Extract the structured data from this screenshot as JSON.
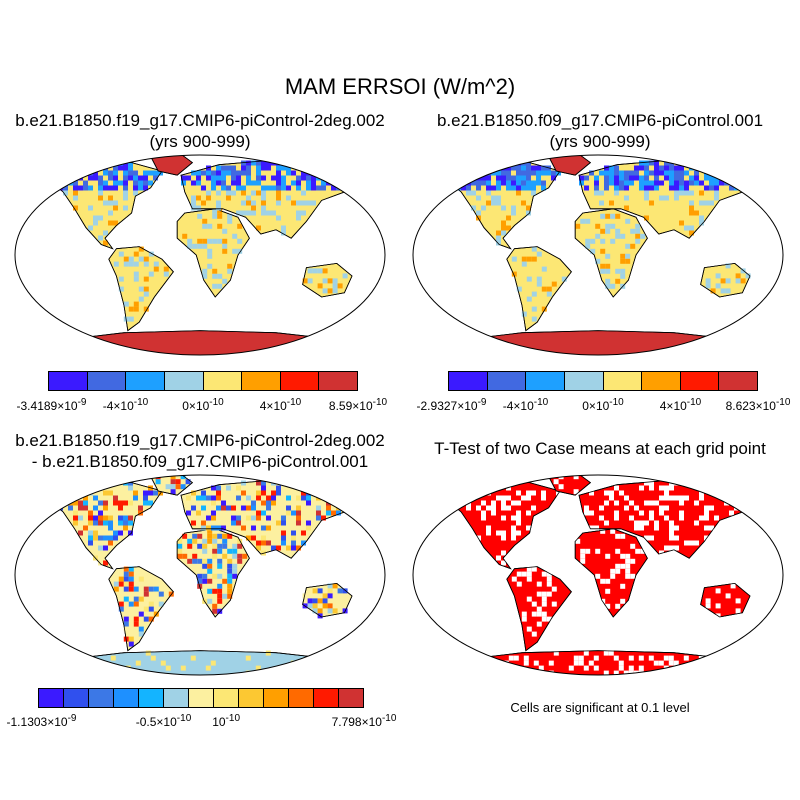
{
  "title": "MAM ERRSOI (W/m^2)",
  "panels": [
    {
      "id": "case1",
      "title_lines": [
        "b.e21.B1850.f19_g17.CMIP6-piControl-2deg.002",
        "(yrs 900-999)"
      ],
      "colorbar": {
        "colors": [
          "#3b1aff",
          "#4169e1",
          "#1ea0ff",
          "#a0d2e6",
          "#fce774",
          "#ff9f00",
          "#ff1a00",
          "#d03232"
        ],
        "labels": [
          "-3.4189×10<sup>-9</sup>",
          "-4×10<sup>-10</sup>",
          "0×10<sup>-10</sup>",
          "4×10<sup>-10</sup>",
          "8.59×10<sup>-10</sup>"
        ]
      }
    },
    {
      "id": "case2",
      "title_lines": [
        "b.e21.B1850.f09_g17.CMIP6-piControl.001",
        "(yrs 900-999)"
      ],
      "colorbar": {
        "colors": [
          "#3b1aff",
          "#4169e1",
          "#1ea0ff",
          "#a0d2e6",
          "#fce774",
          "#ff9f00",
          "#ff1a00",
          "#d03232"
        ],
        "labels": [
          "-2.9327×10<sup>-9</sup>",
          "-4×10<sup>-10</sup>",
          "0×10<sup>-10</sup>",
          "4×10<sup>-10</sup>",
          "8.623×10<sup>-10</sup>"
        ]
      }
    },
    {
      "id": "difference",
      "title_lines": [
        "b.e21.B1850.f19_g17.CMIP6-piControl-2deg.002",
        "- b.e21.B1850.f09_g17.CMIP6-piControl.001"
      ],
      "colorbar": {
        "colors": [
          "#3b1aff",
          "#3050ee",
          "#3c78e6",
          "#1e90ff",
          "#14b4ff",
          "#a0d2e6",
          "#fcf0a0",
          "#fce774",
          "#fcc832",
          "#ff9f00",
          "#ff6a00",
          "#ff1a00",
          "#d03232"
        ],
        "labels": [
          "-1.1303×10<sup>-9</sup>",
          "-0.5×10<sup>-10</sup>",
          "10<sup>-10</sup>",
          "7.798×10<sup>-10</sup>"
        ]
      }
    },
    {
      "id": "ttest",
      "title_lines": [
        "T-Test of two Case means at each grid point"
      ],
      "note": "Cells are significant at 0.1 level"
    }
  ],
  "colors": {
    "land_base": "#fce774",
    "ttest_fill": "#ff0000",
    "coastline": "#000000",
    "antarctica": "#d03232"
  }
}
